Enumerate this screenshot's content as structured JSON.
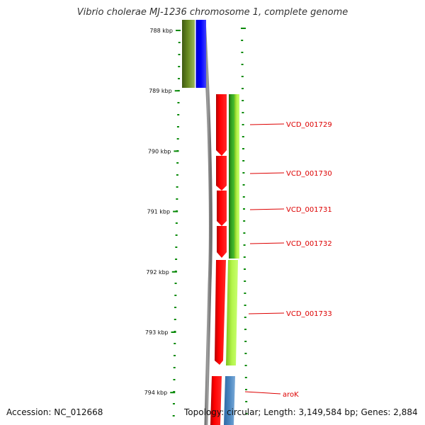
{
  "title": "Vibrio cholerae MJ-1236 chromosome 1, complete genome",
  "footer": {
    "accession": "Accession: NC_012668",
    "topology": "Topology: circular; Length: 3,149,584 bp; Genes: 2,884"
  },
  "kbp_ticks": [
    "788 kbp",
    "789 kbp",
    "790 kbp",
    "791 kbp",
    "792 kbp",
    "793 kbp",
    "794 kbp"
  ],
  "gene_labels": [
    "VCD_001729",
    "VCD_001730",
    "VCD_001731",
    "VCD_001732",
    "VCD_001733",
    "aroK"
  ],
  "colors": {
    "tick_green": "#0a8a0a",
    "label_red": "#dd0000",
    "backbone": "#808080",
    "gene_red": "#ff0000",
    "dark_green": "#2e9a1e",
    "light_green": "#a8f040",
    "olive": "#6b8e23",
    "blue": "#0000ff",
    "steel_blue": "#4a86c0"
  }
}
